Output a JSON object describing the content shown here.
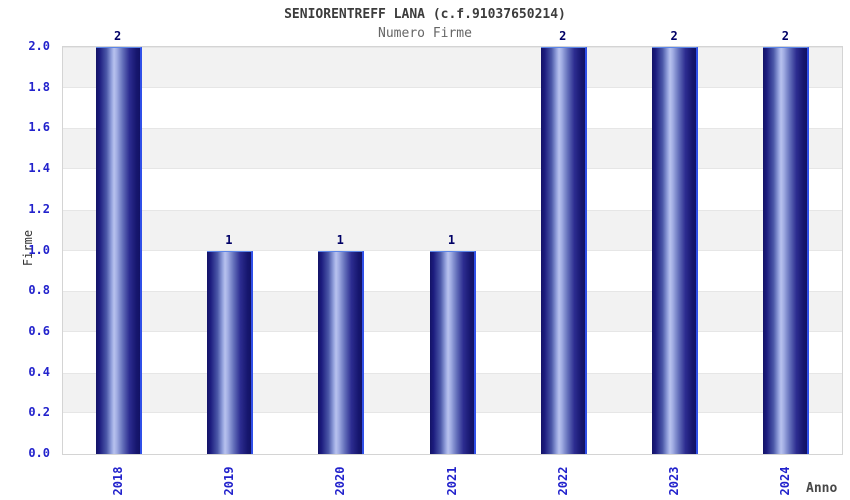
{
  "header": {
    "title": "SENIORENTREFF LANA (c.f.91037650214)",
    "subtitle": "Numero Firme"
  },
  "chart_data": {
    "type": "bar",
    "title": "SENIORENTREFF LANA (c.f.91037650214)",
    "subtitle": "Numero Firme",
    "xlabel": "Anno",
    "ylabel": "Firme",
    "categories": [
      "2018",
      "2019",
      "2020",
      "2021",
      "2022",
      "2023",
      "2024"
    ],
    "values": [
      2,
      1,
      1,
      1,
      2,
      2,
      2
    ],
    "bar_labels": [
      "2",
      "1",
      "1",
      "1",
      "2",
      "2",
      "2"
    ],
    "ylim": [
      0,
      2
    ],
    "ytick_step": 0.2,
    "yticks": [
      "0.0",
      "0.2",
      "0.4",
      "0.6",
      "0.8",
      "1.0",
      "1.2",
      "1.4",
      "1.6",
      "1.8",
      "2.0"
    ],
    "grid": "alternating-horizontal-bands",
    "legend": "none"
  },
  "colors": {
    "bar_dark": "#131366",
    "bar_light": "#b8c2ee",
    "bar_edge": "#3050e8",
    "tick_label": "#2222cc",
    "value_label": "#000066",
    "band_gray": "#f2f2f2",
    "band_white": "#ffffff",
    "plot_border": "#d4d4d4",
    "title": "#3c3c3c",
    "subtitle": "#666666"
  }
}
